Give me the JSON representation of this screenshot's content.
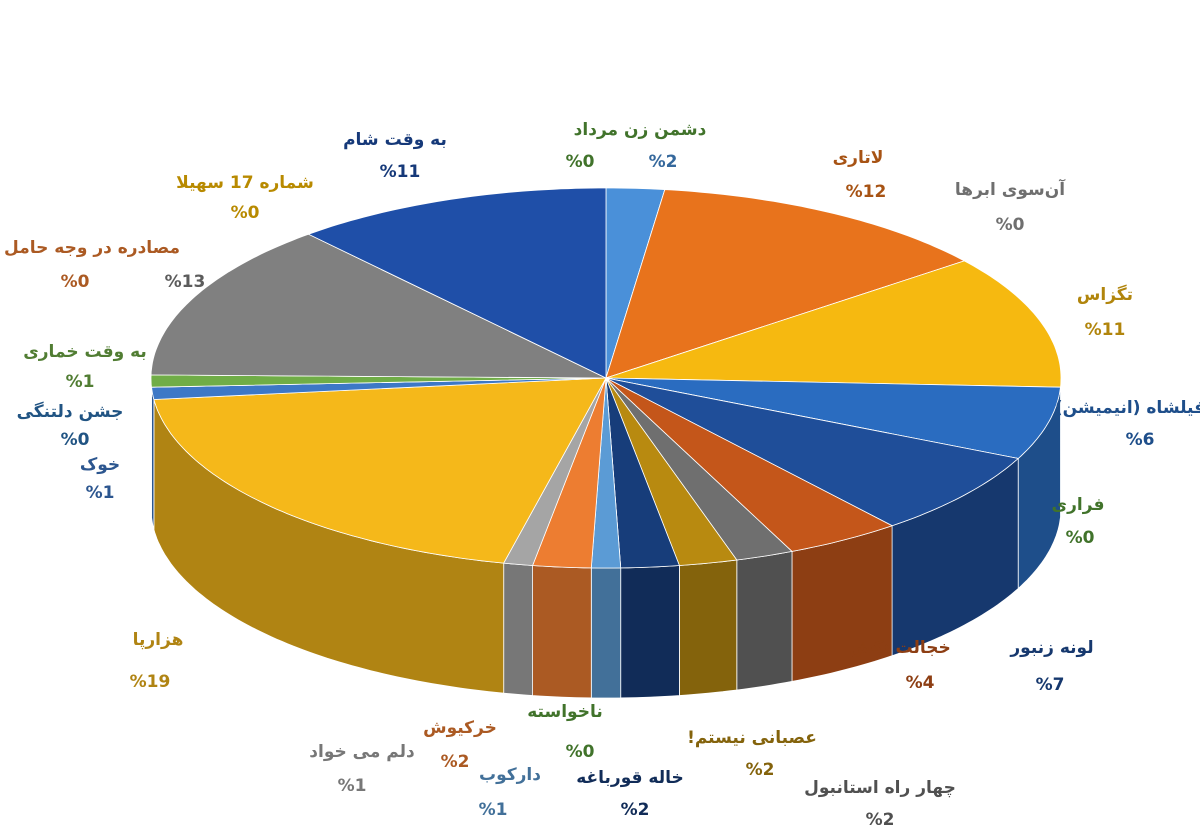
{
  "chart_data": {
    "type": "pie",
    "categories": [
      null,
      "دشمن زن مرداد",
      "لاتاری",
      "آن‌سوی ابرها",
      "تگزاس",
      "فیلشاه (انیمیشن)",
      "فراری",
      "لونه زنبور",
      "خجالت نکش",
      "چهار راه استانبول",
      "عصبانی نیستم!",
      "خاله قورباغه",
      "ناخواسته",
      "دارکوب",
      "خرکیوش",
      "دلم می خواد",
      "هزارپا",
      "خوک",
      "جشن دلتنگی",
      "به وقت خماری",
      "مصادره در وجه حامل",
      null,
      "شماره 17 سهیلا",
      "به وقت شام"
    ],
    "values": [
      2,
      0,
      12,
      0,
      11,
      6,
      0,
      7,
      4,
      2,
      2,
      2,
      0,
      1,
      2,
      1,
      19,
      1,
      0,
      1,
      0,
      13,
      0,
      11
    ],
    "value_labels": [
      "%2",
      "%0",
      "%12",
      "%0",
      "%11",
      "%6",
      "%0",
      "%7",
      "%4",
      "%2",
      "%2",
      "%2",
      "%0",
      "%1",
      "%2",
      "%1",
      "%19",
      "%1",
      "%0",
      "%1",
      "%0",
      "%13",
      "%0",
      "%11"
    ],
    "colors": [
      "#4a90d9",
      "#5aa03c",
      "#e8731c",
      "#9a9a9a",
      "#f6b910",
      "#2a6cc0",
      "#5aa03c",
      "#1f4e99",
      "#c4561a",
      "#6f6f6f",
      "#b88a10",
      "#173d7a",
      "#5aa03c",
      "#5b9bd5",
      "#ed7d31",
      "#a5a5a5",
      "#f5b81a",
      "#3d78c6",
      "#2e75b6",
      "#70ad47",
      "#ed7d31",
      "#808080",
      "#ffc000",
      "#1f4fa8"
    ]
  }
}
